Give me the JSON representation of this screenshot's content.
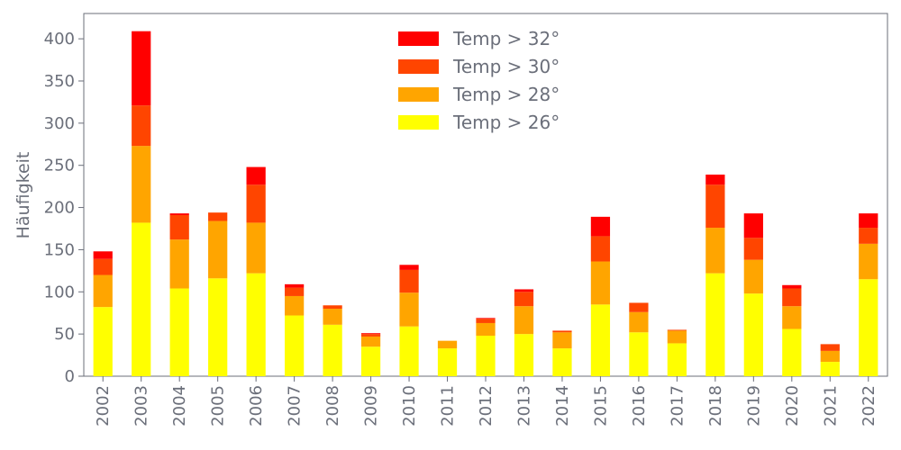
{
  "chart_data": {
    "type": "bar",
    "stacked": true,
    "ylabel": "Häufigkeit",
    "xlabel": "",
    "ylim": [
      0,
      430
    ],
    "yticks": [
      0,
      50,
      100,
      150,
      200,
      250,
      300,
      350,
      400
    ],
    "grid": false,
    "legend_position": "top-center",
    "categories": [
      "2002",
      "2003",
      "2004",
      "2005",
      "2006",
      "2007",
      "2008",
      "2009",
      "2010",
      "2011",
      "2012",
      "2013",
      "2014",
      "2015",
      "2016",
      "2017",
      "2018",
      "2019",
      "2020",
      "2021",
      "2022"
    ],
    "series": [
      {
        "name": "Temp > 26°",
        "color": "#ffff00",
        "values": [
          82,
          182,
          104,
          116,
          122,
          72,
          61,
          35,
          59,
          33,
          48,
          50,
          33,
          85,
          52,
          39,
          122,
          98,
          56,
          17,
          115
        ]
      },
      {
        "name": "Temp > 28°",
        "color": "#ffa500",
        "values": [
          38,
          91,
          58,
          68,
          60,
          23,
          19,
          12,
          40,
          9,
          15,
          33,
          19,
          51,
          24,
          15,
          54,
          40,
          27,
          13,
          42
        ]
      },
      {
        "name": "Temp > 30°",
        "color": "#ff4500",
        "values": [
          19,
          48,
          29,
          10,
          45,
          10,
          4,
          3,
          27,
          0,
          5,
          17,
          2,
          30,
          11,
          1,
          51,
          26,
          21,
          8,
          19
        ]
      },
      {
        "name": "Temp > 32°",
        "color": "#ff0000",
        "values": [
          9,
          88,
          2,
          0,
          21,
          4,
          0,
          1,
          6,
          0,
          1,
          3,
          0,
          23,
          0,
          0,
          12,
          29,
          4,
          0,
          17
        ]
      }
    ]
  }
}
